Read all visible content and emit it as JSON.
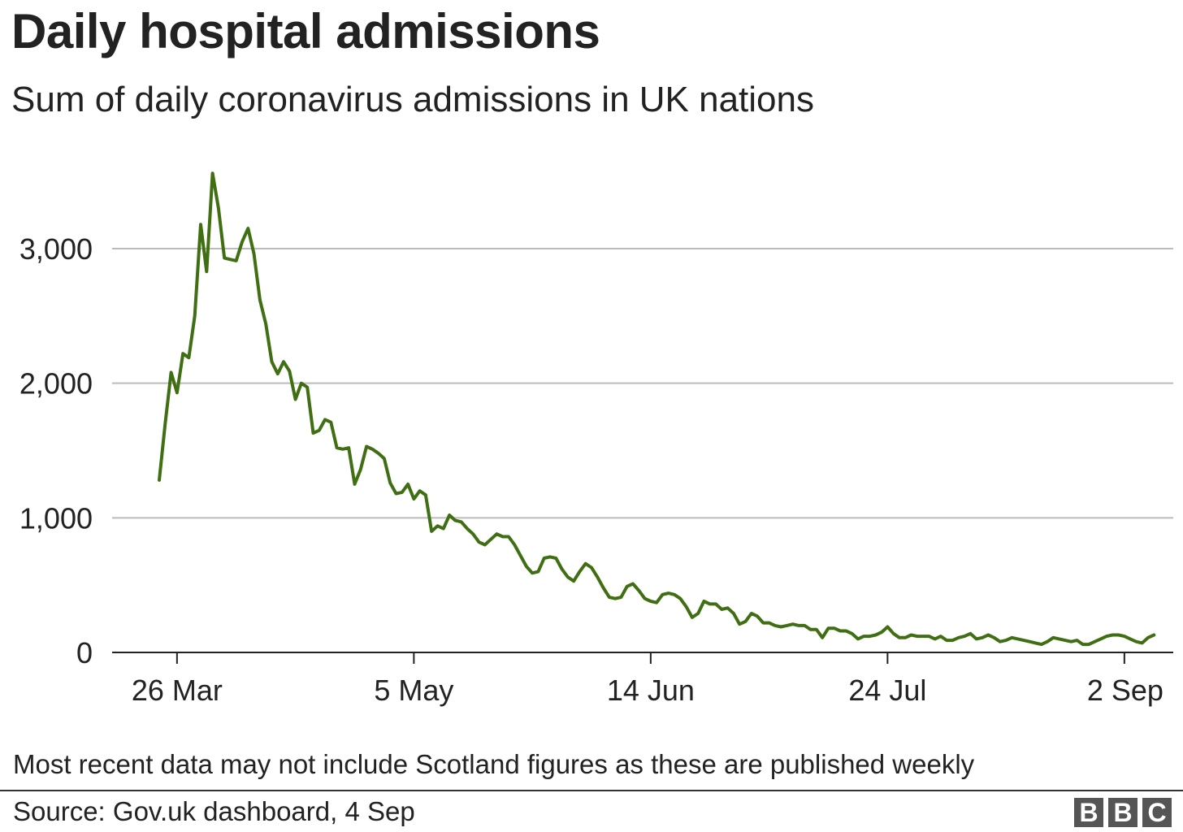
{
  "header": {
    "title": "Daily hospital admissions",
    "subtitle": "Sum of daily coronavirus admissions in UK nations"
  },
  "footer": {
    "note": "Most recent data may not include Scotland figures as these are published weekly",
    "source": "Source: Gov.uk dashboard, 4 Sep",
    "logo": [
      "B",
      "B",
      "C"
    ]
  },
  "colors": {
    "line": "#3f6f12",
    "grid": "#bbbbbb",
    "axis": "#222222",
    "logo": "#555555"
  },
  "chart_data": {
    "type": "line",
    "title": "Daily hospital admissions",
    "subtitle": "Sum of daily coronavirus admissions in UK nations",
    "xlabel": "",
    "ylabel": "",
    "x_tick_labels": [
      "26 Mar",
      "5 May",
      "14 Jun",
      "24 Jul",
      "2 Sep"
    ],
    "y_tick_labels": [
      "0",
      "1,000",
      "2,000",
      "3,000"
    ],
    "y_ticks": [
      0,
      1000,
      2000,
      3000
    ],
    "ylim": [
      0,
      3600
    ],
    "grid": "horizontal",
    "start_date": "2020-03-23",
    "series": [
      {
        "values": [
          1280,
          1700,
          2080,
          1930,
          2220,
          2190,
          2500,
          3180,
          2830,
          3560,
          3300,
          2930,
          2920,
          2910,
          3050,
          3150,
          2960,
          2620,
          2440,
          2160,
          2070,
          2160,
          2090,
          1880,
          2000,
          1970,
          1630,
          1650,
          1730,
          1710,
          1520,
          1510,
          1520,
          1250,
          1360,
          1530,
          1510,
          1480,
          1440,
          1260,
          1180,
          1190,
          1250,
          1140,
          1200,
          1170,
          900,
          940,
          920,
          1020,
          980,
          970,
          920,
          880,
          820,
          800,
          840,
          880,
          860,
          860,
          800,
          720,
          640,
          590,
          600,
          700,
          710,
          700,
          620,
          560,
          530,
          600,
          660,
          630,
          560,
          480,
          410,
          400,
          410,
          490,
          510,
          460,
          400,
          380,
          370,
          430,
          440,
          430,
          400,
          340,
          260,
          290,
          380,
          360,
          360,
          320,
          330,
          290,
          210,
          230,
          290,
          270,
          220,
          220,
          200,
          190,
          200,
          210,
          200,
          200,
          170,
          170,
          110,
          180,
          180,
          160,
          160,
          140,
          100,
          120,
          120,
          130,
          150,
          190,
          140,
          110,
          110,
          130,
          120,
          120,
          120,
          100,
          120,
          90,
          90,
          110,
          120,
          140,
          100,
          110,
          130,
          110,
          80,
          90,
          110,
          100,
          90,
          80,
          70,
          60,
          80,
          110,
          100,
          90,
          80,
          90,
          60,
          60,
          80,
          100,
          120,
          130,
          130,
          120,
          100,
          80,
          70,
          110,
          130
        ]
      }
    ]
  }
}
